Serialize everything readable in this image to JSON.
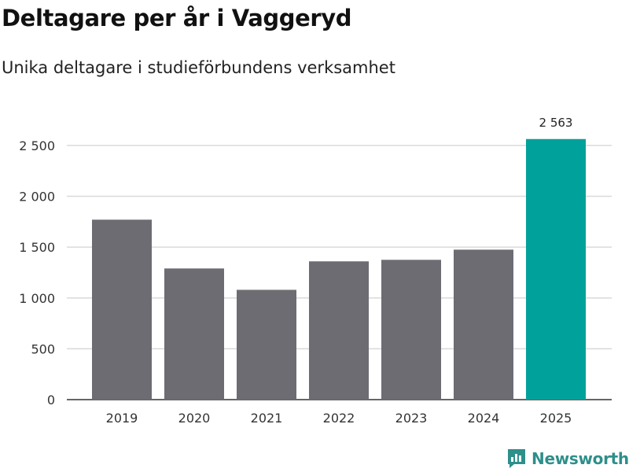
{
  "header": {
    "title": "Deltagare per år i Vaggeryd",
    "subtitle": "Unika deltagare i studieförbundens verksamhet"
  },
  "brand": {
    "name": "Newsworthy",
    "icon": "newsworthy-logo-icon",
    "color": "#2e8f8b"
  },
  "colors": {
    "bar": "#6d6c72",
    "highlight": "#00a19a",
    "grid": "#d9d9d9",
    "axis": "#333333"
  },
  "chart_data": {
    "type": "bar",
    "title": "Deltagare per år i Vaggeryd",
    "subtitle": "Unika deltagare i studieförbundens verksamhet",
    "xlabel": "",
    "ylabel": "",
    "categories": [
      "2019",
      "2020",
      "2021",
      "2022",
      "2023",
      "2024",
      "2025"
    ],
    "values": [
      1770,
      1290,
      1080,
      1360,
      1375,
      1475,
      2563
    ],
    "highlight_index": 6,
    "data_labels": [
      {
        "index": 6,
        "text": "2 563"
      }
    ],
    "ylim": [
      0,
      2700
    ],
    "yticks": [
      0,
      500,
      1000,
      1500,
      2000,
      2500
    ],
    "ytick_labels": [
      "0",
      "500",
      "1 000",
      "1 500",
      "2 000",
      "2 500"
    ],
    "grid": true,
    "legend": "none"
  }
}
